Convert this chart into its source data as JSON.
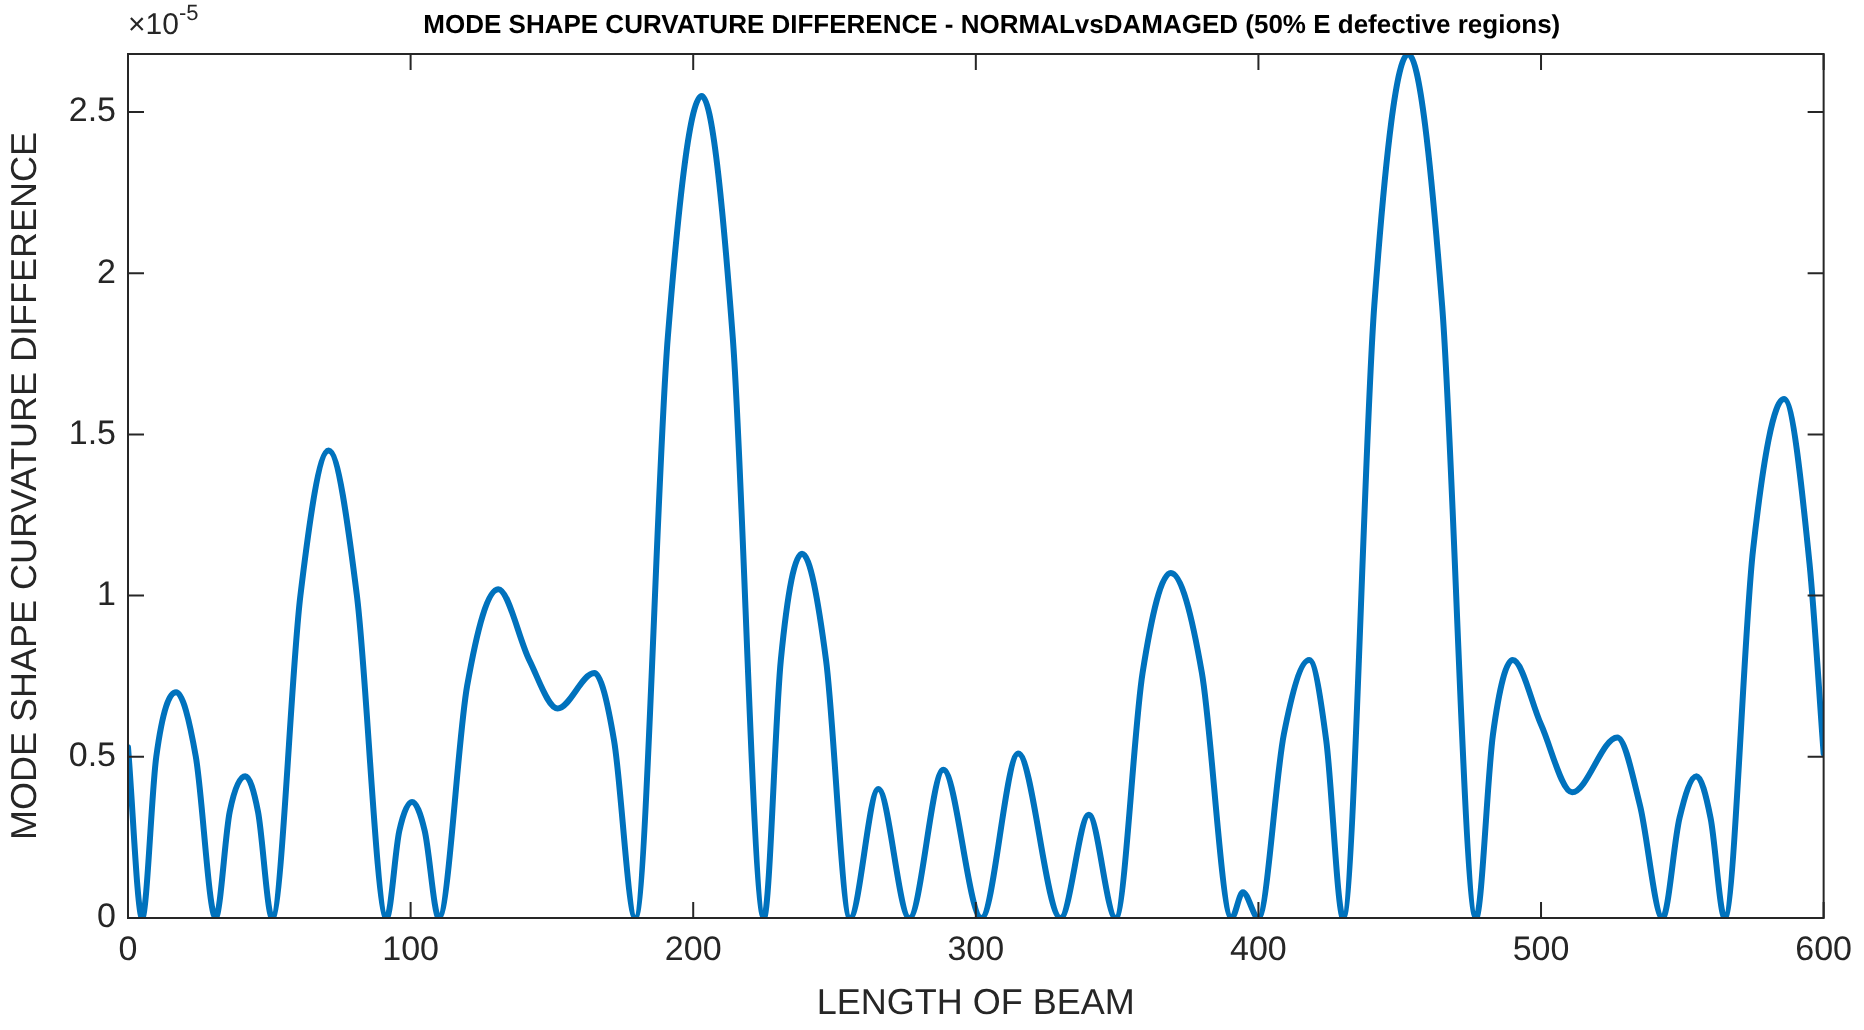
{
  "chart_data": {
    "type": "line",
    "title": "MODE SHAPE CURVATURE DIFFERENCE - NORMALvsDAMAGED (50% E defective regions)",
    "xlabel": "LENGTH OF BEAM",
    "ylabel": "MODE SHAPE CURVATURE DIFFERENCE",
    "annotations": [
      "×10$^{-5}$"
    ],
    "x": [
      0,
      5,
      10,
      17,
      24,
      31,
      36,
      41.5,
      46,
      51,
      61,
      71,
      81,
      91.5,
      96,
      100.5,
      105,
      110,
      120,
      131,
      142,
      152,
      165,
      172,
      179.5,
      191,
      203,
      214,
      225,
      231,
      238.5,
      247,
      255.5,
      265.5,
      276.5,
      288.5,
      302,
      315,
      330,
      340,
      349.5,
      359,
      369,
      380,
      390.5,
      394.5,
      400,
      409,
      418,
      424,
      430,
      441,
      453,
      465,
      477,
      483,
      490,
      500,
      511,
      527,
      535,
      543,
      549,
      555,
      560,
      565,
      575,
      586,
      595,
      600
    ],
    "series": [
      {
        "color": "#0072bd",
        "values": [
          0.53,
          0,
          0.5,
          0.7,
          0.5,
          0,
          0.33,
          0.44,
          0.33,
          0,
          1.0,
          1.45,
          1.0,
          0,
          0.27,
          0.36,
          0.27,
          0,
          0.72,
          1.02,
          0.8,
          0.65,
          0.76,
          0.55,
          0,
          1.8,
          2.55,
          1.8,
          0,
          0.8,
          1.13,
          0.8,
          0,
          0.4,
          0,
          0.46,
          0,
          0.51,
          0,
          0.32,
          0,
          0.76,
          1.07,
          0.76,
          0,
          0.08,
          0,
          0.57,
          0.8,
          0.55,
          0,
          1.9,
          2.68,
          1.9,
          0,
          0.57,
          0.8,
          0.6,
          0.39,
          0.56,
          0.35,
          0,
          0.31,
          0.44,
          0.31,
          0,
          1.14,
          1.61,
          1.1,
          0.51
        ]
      }
    ],
    "xlim": [
      0,
      600
    ],
    "xticks": [
      0,
      100,
      200,
      300,
      400,
      500,
      600
    ],
    "ylim": [
      0,
      2.68
    ],
    "yticks": [
      0,
      0.5,
      1,
      1.5,
      2,
      2.5
    ],
    "grid": false,
    "legend": false,
    "marker": "none",
    "line_style": "solid"
  }
}
